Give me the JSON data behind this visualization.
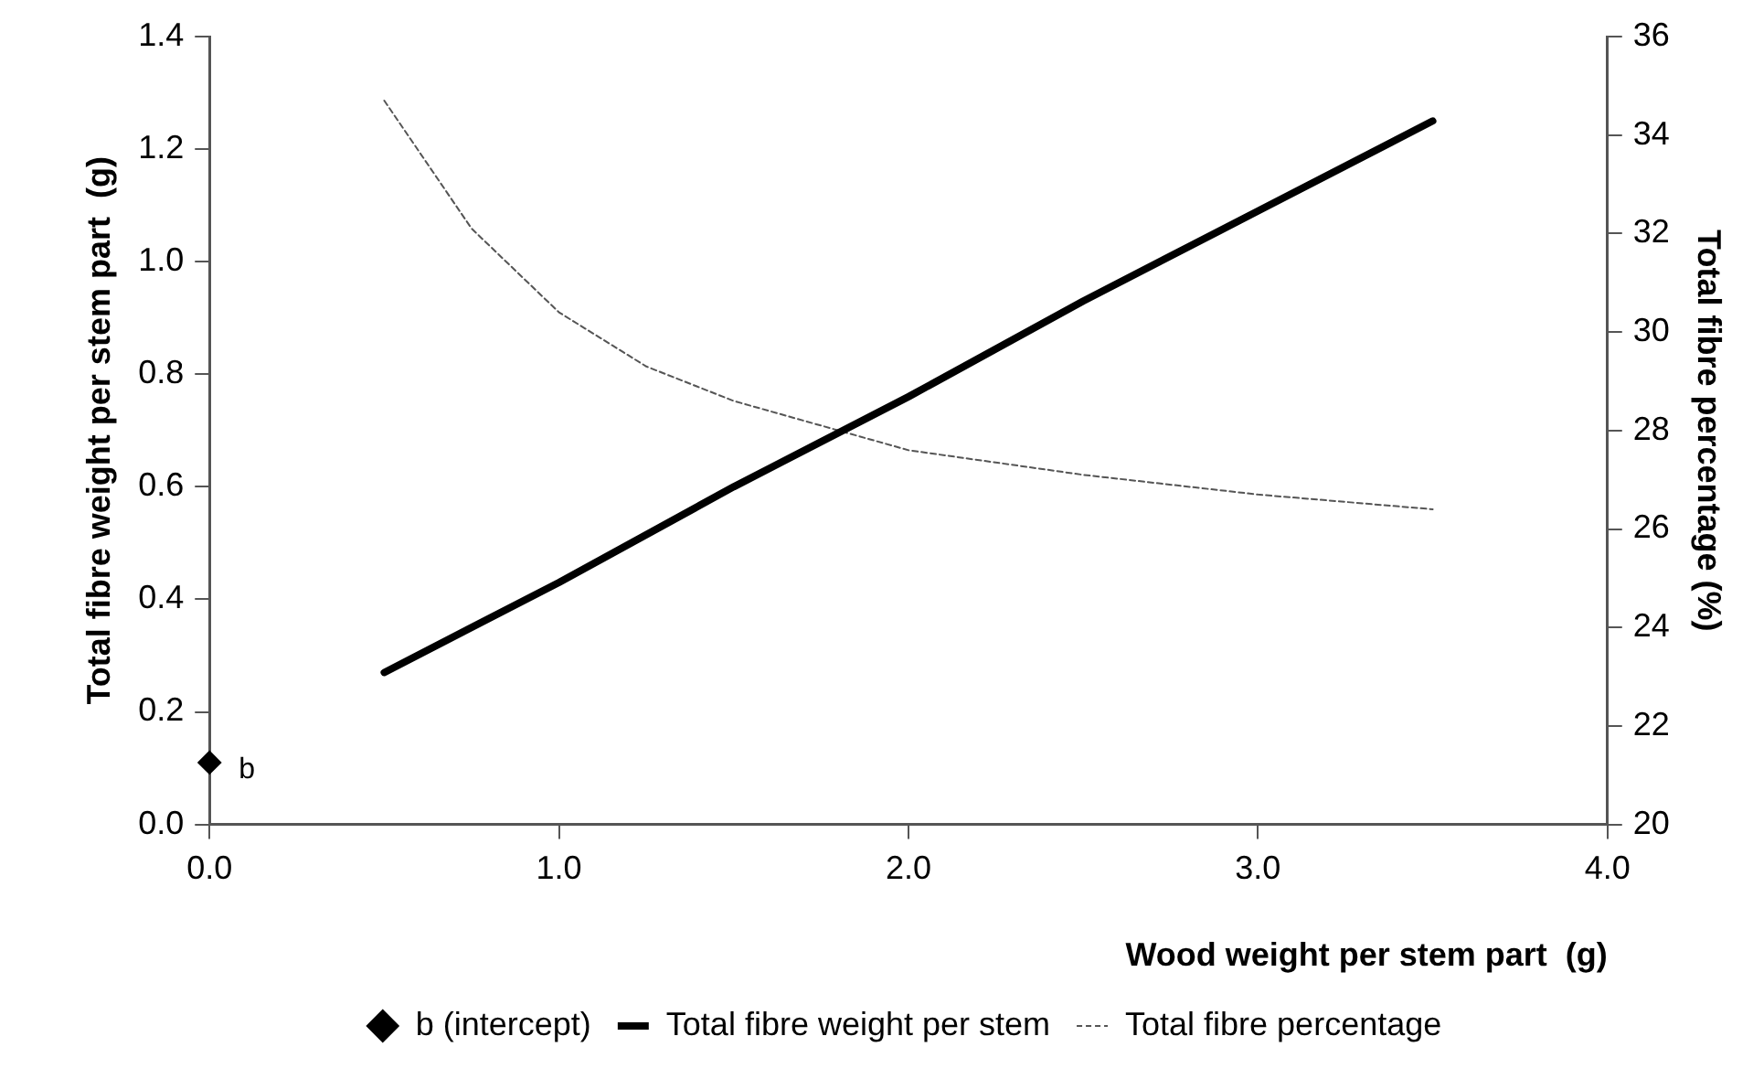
{
  "chart_data": {
    "type": "line",
    "xlabel": "Wood weight per stem part  (g)",
    "ylabel": "Total fibre weight per stem part  (g)",
    "y2label": "Total fibre percentage (%)",
    "xlim": [
      0,
      4
    ],
    "xticks": [
      {
        "value": 0,
        "label": "0.0"
      },
      {
        "value": 1,
        "label": "1.0"
      },
      {
        "value": 2,
        "label": "2.0"
      },
      {
        "value": 3,
        "label": "3.0"
      },
      {
        "value": 4,
        "label": "4.0"
      }
    ],
    "ylim": [
      0,
      1.4
    ],
    "yticks": [
      {
        "value": 0,
        "label": "0.0"
      },
      {
        "value": 0.2,
        "label": "0.2"
      },
      {
        "value": 0.4,
        "label": "0.4"
      },
      {
        "value": 0.6,
        "label": "0.6"
      },
      {
        "value": 0.8,
        "label": "0.8"
      },
      {
        "value": 1,
        "label": "1.0"
      },
      {
        "value": 1.2,
        "label": "1.2"
      },
      {
        "value": 1.4,
        "label": "1.4"
      }
    ],
    "y2lim": [
      20,
      36
    ],
    "y2ticks": [
      20,
      22,
      24,
      26,
      28,
      30,
      32,
      34,
      36
    ],
    "grid": false,
    "legend": "bottom",
    "annotations": [
      {
        "text": "b",
        "x": 0,
        "y": 0.11
      }
    ],
    "series": [
      {
        "name": "b (intercept)",
        "type": "scatter",
        "marker": "diamond",
        "color": "#000000",
        "x": [
          0
        ],
        "values": [
          0.11
        ]
      },
      {
        "name": "Total fibre weight per stem",
        "type": "line",
        "marker": "none",
        "line_style": "solid",
        "color": "#000000",
        "x": [
          0.5,
          1,
          1.5,
          2,
          2.5,
          3,
          3.5
        ],
        "values": [
          0.27,
          0.43,
          0.6,
          0.76,
          0.93,
          1.09,
          1.25
        ]
      },
      {
        "name": "Total fibre percentage",
        "type": "line",
        "marker": "none",
        "line_style": "dashed",
        "axis": "y2",
        "color": "#555555",
        "x": [
          0.5,
          0.75,
          1,
          1.25,
          1.5,
          2,
          2.5,
          3,
          3.5
        ],
        "values": [
          34.7,
          32.1,
          30.4,
          29.3,
          28.6,
          27.6,
          27.1,
          26.7,
          26.4
        ]
      }
    ]
  }
}
